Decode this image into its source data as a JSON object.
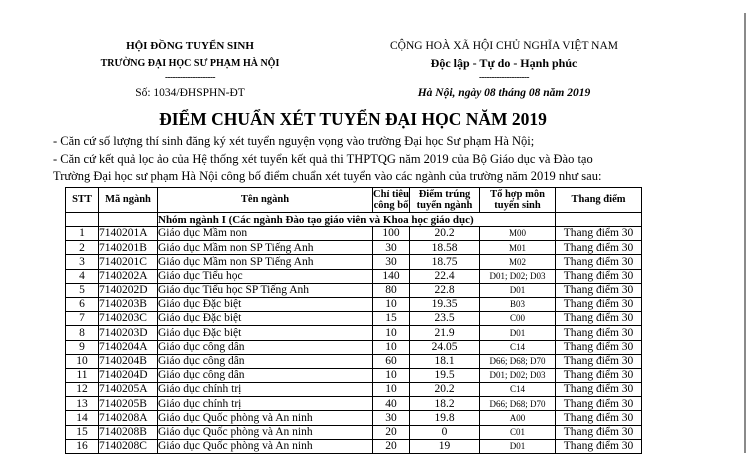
{
  "letterhead": {
    "left": {
      "line1": "HỘI ĐỒNG TUYỂN SINH",
      "line2": "TRƯỜNG ĐẠI HỌC SƯ PHẠM HÀ NỘI",
      "separator": "--------------------",
      "doc_number": "Số: 1034/ĐHSPHN-ĐT"
    },
    "right": {
      "line1": "CỘNG HOÀ XÃ HỘI CHỦ NGHĨA VIỆT NAM",
      "line2": "Độc lập - Tự do - Hạnh phúc",
      "separator": "--------------------",
      "date_line": "Hà Nội, ngày 08 tháng 08 năm 2019"
    }
  },
  "title": "ĐIỂM CHUẨN XÉT TUYỂN ĐẠI HỌC NĂM 2019",
  "preamble": [
    "- Căn cứ số lượng thí sinh đăng ký xét tuyển nguyện vọng vào trường Đại học Sư phạm Hà Nội;",
    "- Căn cứ kết quả lọc ảo của Hệ thống xét tuyển kết quả thi THPTQG năm 2019 của Bộ Giáo dục và Đào tạo",
    "Trường Đại học sư phạm Hà Nội công bố điểm chuẩn xét tuyển vào các ngành của trường năm 2019 như sau:"
  ],
  "table": {
    "headers": [
      "STT",
      "Mã ngành",
      "Tên ngành",
      "Chỉ tiêu\ncông bố",
      "Điểm trúng\ntuyển ngành",
      "Tổ hợp môn\ntuyển sinh",
      "Thang điểm"
    ],
    "group_label": "Nhóm ngành I (Các ngành Đào tạo giáo viên và Khoa học giáo dục)",
    "rows": [
      {
        "stt": "1",
        "ma_nganh": "7140201A",
        "ten_nganh": "Giáo dục Mầm non",
        "chi_tieu": "100",
        "diem": "20.2",
        "to_hop": "M00",
        "thang_diem": "Thang điểm 30"
      },
      {
        "stt": "2",
        "ma_nganh": "7140201B",
        "ten_nganh": "Giáo dục Mầm non SP Tiếng Anh",
        "chi_tieu": "30",
        "diem": "18.58",
        "to_hop": "M01",
        "thang_diem": "Thang điểm 30"
      },
      {
        "stt": "3",
        "ma_nganh": "7140201C",
        "ten_nganh": "Giáo dục Mầm non SP Tiếng Anh",
        "chi_tieu": "30",
        "diem": "18.75",
        "to_hop": "M02",
        "thang_diem": "Thang điểm 30"
      },
      {
        "stt": "4",
        "ma_nganh": "7140202A",
        "ten_nganh": "Giáo dục Tiểu học",
        "chi_tieu": "140",
        "diem": "22.4",
        "to_hop": "D01; D02; D03",
        "thang_diem": "Thang điểm 30"
      },
      {
        "stt": "5",
        "ma_nganh": "7140202D",
        "ten_nganh": "Giáo dục Tiểu học SP Tiếng Anh",
        "chi_tieu": "80",
        "diem": "22.8",
        "to_hop": "D01",
        "thang_diem": "Thang điểm 30"
      },
      {
        "stt": "6",
        "ma_nganh": "7140203B",
        "ten_nganh": "Giáo dục Đặc biệt",
        "chi_tieu": "10",
        "diem": "19.35",
        "to_hop": "B03",
        "thang_diem": "Thang điểm 30"
      },
      {
        "stt": "7",
        "ma_nganh": "7140203C",
        "ten_nganh": "Giáo dục Đặc biệt",
        "chi_tieu": "15",
        "diem": "23.5",
        "to_hop": "C00",
        "thang_diem": "Thang điểm 30"
      },
      {
        "stt": "8",
        "ma_nganh": "7140203D",
        "ten_nganh": "Giáo dục Đặc biệt",
        "chi_tieu": "10",
        "diem": "21.9",
        "to_hop": "D01",
        "thang_diem": "Thang điểm 30"
      },
      {
        "stt": "9",
        "ma_nganh": "7140204A",
        "ten_nganh": "Giáo dục công dân",
        "chi_tieu": "10",
        "diem": "24.05",
        "to_hop": "C14",
        "thang_diem": "Thang điểm 30"
      },
      {
        "stt": "10",
        "ma_nganh": "7140204B",
        "ten_nganh": "Giáo dục công dân",
        "chi_tieu": "60",
        "diem": "18.1",
        "to_hop": "D66; D68; D70",
        "thang_diem": "Thang điểm 30"
      },
      {
        "stt": "11",
        "ma_nganh": "7140204D",
        "ten_nganh": "Giáo dục công dân",
        "chi_tieu": "10",
        "diem": "19.5",
        "to_hop": "D01; D02; D03",
        "thang_diem": "Thang điểm 30"
      },
      {
        "stt": "12",
        "ma_nganh": "7140205A",
        "ten_nganh": "Giáo dục chính trị",
        "chi_tieu": "10",
        "diem": "20.2",
        "to_hop": "C14",
        "thang_diem": "Thang điểm 30"
      },
      {
        "stt": "13",
        "ma_nganh": "7140205B",
        "ten_nganh": "Giáo dục chính trị",
        "chi_tieu": "40",
        "diem": "18.2",
        "to_hop": "D66; D68; D70",
        "thang_diem": "Thang điểm 30"
      },
      {
        "stt": "14",
        "ma_nganh": "7140208A",
        "ten_nganh": "Giáo dục Quốc phòng và An ninh",
        "chi_tieu": "30",
        "diem": "19.8",
        "to_hop": "A00",
        "thang_diem": "Thang điểm 30"
      },
      {
        "stt": "15",
        "ma_nganh": "7140208B",
        "ten_nganh": "Giáo dục Quốc phòng và An ninh",
        "chi_tieu": "20",
        "diem": "0",
        "to_hop": "C01",
        "thang_diem": "Thang điểm 30"
      },
      {
        "stt": "16",
        "ma_nganh": "7140208C",
        "ten_nganh": "Giáo dục Quốc phòng và An ninh",
        "chi_tieu": "20",
        "diem": "19",
        "to_hop": "D01",
        "thang_diem": "Thang điểm 30",
        "partial": true
      }
    ]
  },
  "colors": {
    "page_bg": "#ffffff",
    "text": "#000000",
    "table_border": "#000000",
    "edge_line": "#8a8a8a"
  }
}
